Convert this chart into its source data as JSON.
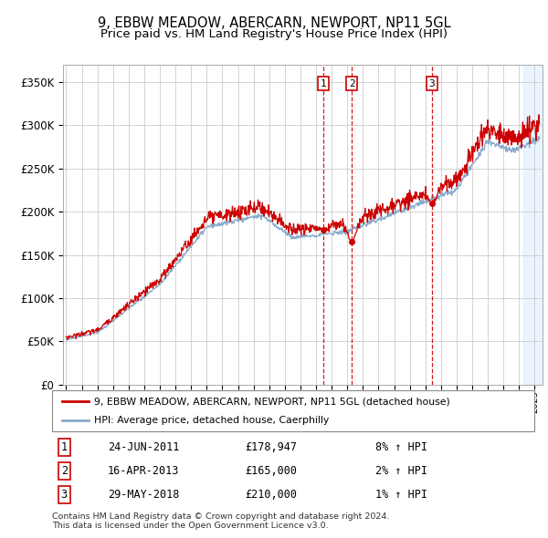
{
  "title1": "9, EBBW MEADOW, ABERCARN, NEWPORT, NP11 5GL",
  "title2": "Price paid vs. HM Land Registry's House Price Index (HPI)",
  "ylim": [
    0,
    370000
  ],
  "yticks": [
    0,
    50000,
    100000,
    150000,
    200000,
    250000,
    300000,
    350000
  ],
  "ytick_labels": [
    "£0",
    "£50K",
    "£100K",
    "£150K",
    "£200K",
    "£250K",
    "£300K",
    "£350K"
  ],
  "xlim_start": 1994.8,
  "xlim_end": 2025.5,
  "sale_dates": [
    2011.478,
    2013.288,
    2018.412
  ],
  "sale_prices": [
    178947,
    165000,
    210000
  ],
  "sale_labels": [
    "1",
    "2",
    "3"
  ],
  "sale_annotations": [
    {
      "label": "1",
      "date": "24-JUN-2011",
      "price": "£178,947",
      "pct": "8% ↑ HPI"
    },
    {
      "label": "2",
      "date": "16-APR-2013",
      "price": "£165,000",
      "pct": "2% ↑ HPI"
    },
    {
      "label": "3",
      "date": "29-MAY-2018",
      "price": "£210,000",
      "pct": "1% ↑ HPI"
    }
  ],
  "red_line_color": "#cc0000",
  "blue_line_color": "#88aacc",
  "grid_color": "#cccccc",
  "shade_color": "#ddeeff",
  "legend_label_red": "9, EBBW MEADOW, ABERCARN, NEWPORT, NP11 5GL (detached house)",
  "legend_label_blue": "HPI: Average price, detached house, Caerphilly",
  "footer_text": "Contains HM Land Registry data © Crown copyright and database right 2024.\nThis data is licensed under the Open Government Licence v3.0."
}
